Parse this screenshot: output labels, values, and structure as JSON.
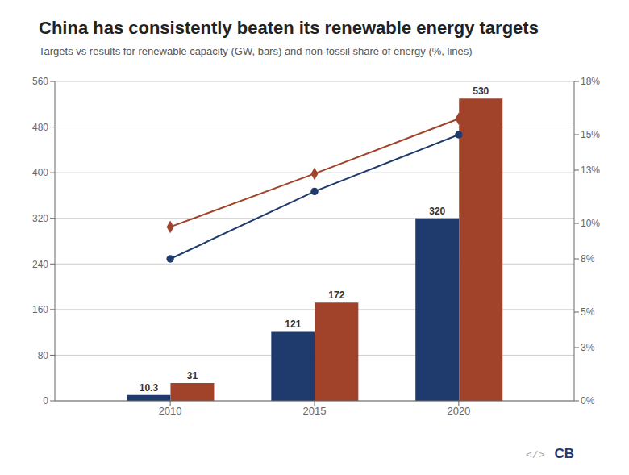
{
  "chart_data": {
    "type": "bar",
    "title": "China has consistently beaten its renewable energy targets",
    "subtitle": "Targets vs results for renewable capacity (GW, bars) and non-fossil share of energy (%, lines)",
    "x": [
      2010,
      2015,
      2020
    ],
    "xlim": [
      2006,
      2024
    ],
    "xticks": [
      2010,
      2015,
      2020
    ],
    "ylim": [
      0,
      560
    ],
    "yticks": [
      0,
      80,
      160,
      240,
      320,
      400,
      480,
      560
    ],
    "y2lim": [
      0,
      18
    ],
    "y2ticks": [
      {
        "value": 0,
        "label": "0%"
      },
      {
        "value": 3,
        "label": "3%"
      },
      {
        "value": 5,
        "label": "5%"
      },
      {
        "value": 8,
        "label": "8%"
      },
      {
        "value": 10,
        "label": "10%"
      },
      {
        "value": 13,
        "label": "13%"
      },
      {
        "value": 15,
        "label": "15%"
      },
      {
        "value": 18,
        "label": "18%"
      }
    ],
    "grid": true,
    "series": [
      {
        "type": "bar",
        "color": "#1F3B6E",
        "values": [
          10.3,
          121,
          320
        ],
        "data_labels": true
      },
      {
        "type": "bar",
        "color": "#A0432A",
        "values": [
          31,
          172,
          530
        ],
        "data_labels": true
      },
      {
        "type": "line",
        "axis": "y2",
        "color": "#1F3B6E",
        "marker": "circle",
        "values": [
          8.0,
          11.8,
          15.0
        ]
      },
      {
        "type": "line",
        "axis": "y2",
        "color": "#A0432A",
        "marker": "diamond",
        "values": [
          9.8,
          12.8,
          15.9
        ]
      }
    ],
    "annotations": [
      "</>",
      "CB"
    ]
  }
}
